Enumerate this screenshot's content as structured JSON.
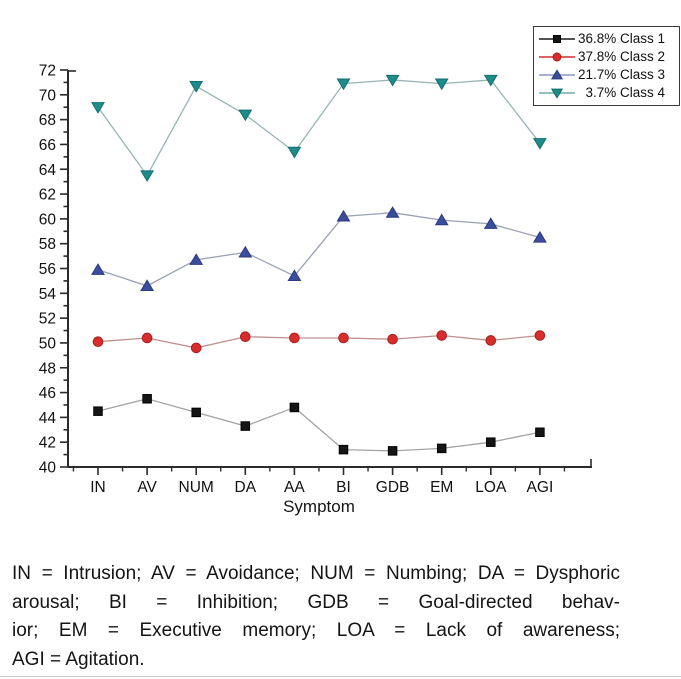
{
  "chart_data": {
    "type": "line",
    "title": "",
    "xlabel": "Symptom",
    "ylabel": "",
    "ylim": [
      40,
      72
    ],
    "ytick_step": 2,
    "grid": false,
    "legend_position": "top-right",
    "categories": [
      "IN",
      "AV",
      "NUM",
      "DA",
      "AA",
      "BI",
      "GDB",
      "EM",
      "LOA",
      "AGI"
    ],
    "series": [
      {
        "name": "36.8% Class 1",
        "legend_label": "36.8% Class 1",
        "marker": "square",
        "color": "#151515",
        "edge": "#000000",
        "line": "#a3a3a3",
        "legend_line": "#1a1a1a",
        "values": [
          44.5,
          45.5,
          44.4,
          43.3,
          44.8,
          41.4,
          41.3,
          41.5,
          42.0,
          42.8
        ]
      },
      {
        "name": "37.8% Class 2",
        "legend_label": "37.8% Class 2",
        "marker": "circle",
        "color": "#d92c2c",
        "edge": "#a82020",
        "line": "#c09090",
        "legend_line": "#d22f2f",
        "values": [
          50.1,
          50.4,
          49.6,
          50.5,
          50.4,
          50.4,
          50.3,
          50.6,
          50.2,
          50.6
        ]
      },
      {
        "name": "21.7% Class 3",
        "legend_label": "21.7% Class 3",
        "marker": "triangle-up",
        "color": "#3b4e9c",
        "edge": "#2b3a7d",
        "line": "#9aa0b5",
        "legend_line": "#8a97c0",
        "values": [
          55.9,
          54.6,
          56.7,
          57.3,
          55.4,
          60.2,
          60.5,
          59.9,
          59.6,
          58.5
        ]
      },
      {
        "name": "3.7% Class 4",
        "legend_label": "  3.7% Class 4",
        "marker": "triangle-down",
        "color": "#1f8c8c",
        "edge": "#126d6d",
        "line": "#98b5b5",
        "legend_line": "#74aaaa",
        "values": [
          69.0,
          63.5,
          70.7,
          68.4,
          65.4,
          70.9,
          71.2,
          70.9,
          71.2,
          66.1
        ]
      }
    ]
  },
  "caption": {
    "lines": [
      "IN = Intrusion; AV = Avoidance; NUM = Numbing; DA = Dysphoric",
      "arousal; BI = Inhibition; GDB = Goal-directed behav-",
      "ior; EM = Executive memory; LOA = Lack of awareness;",
      "AGI = Agitation."
    ]
  }
}
